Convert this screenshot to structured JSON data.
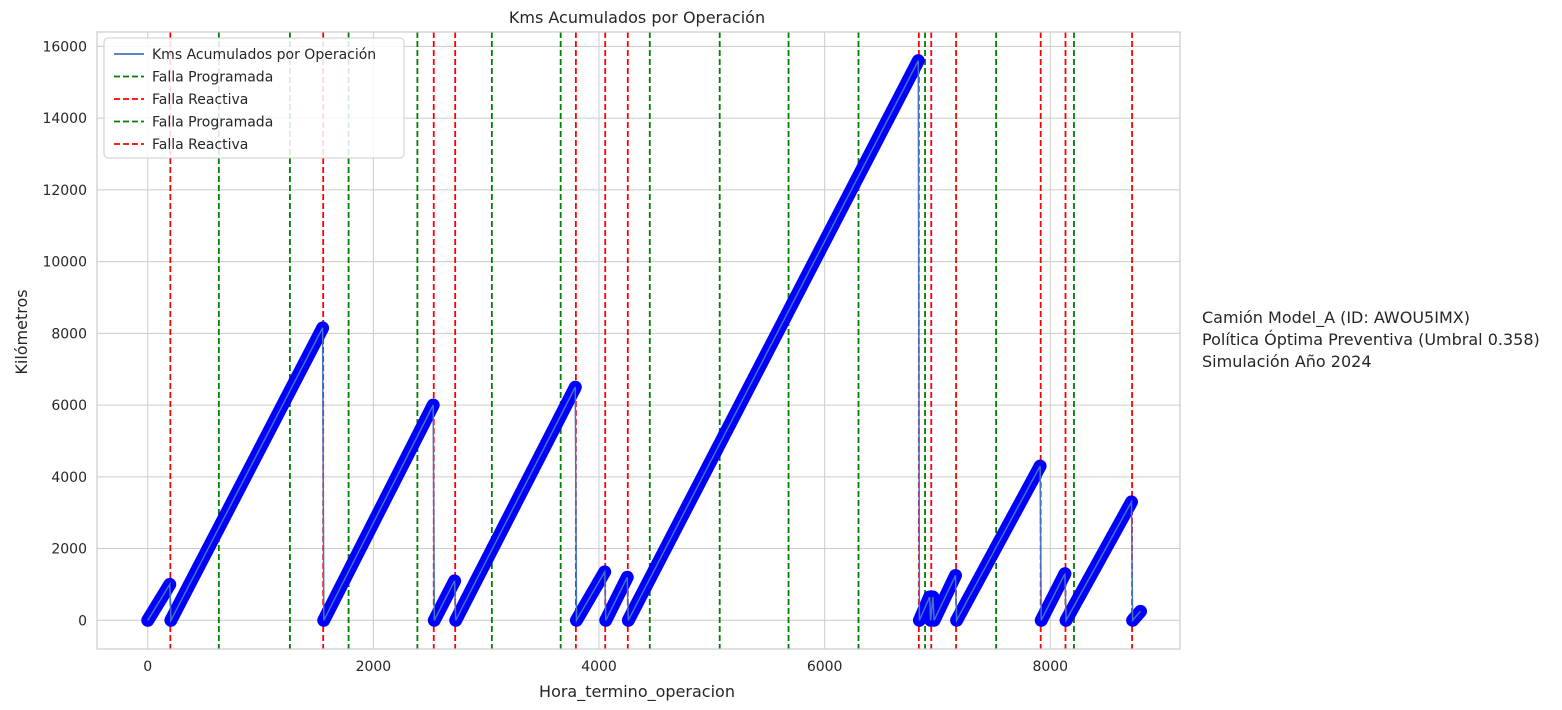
{
  "chart_data": {
    "type": "line",
    "title": "Kms Acumulados por Operación",
    "xlabel": "Hora_termino_operacion",
    "ylabel": "Kilómetros",
    "xlim": [
      -450,
      9150
    ],
    "ylim": [
      -800,
      16400
    ],
    "xticks": [
      0,
      2000,
      4000,
      6000,
      8000
    ],
    "yticks": [
      0,
      2000,
      4000,
      6000,
      8000,
      10000,
      12000,
      14000,
      16000
    ],
    "grid": true,
    "legend_position": "top-left",
    "legend": [
      {
        "label": "Kms Acumulados por Operación",
        "style": "solid",
        "color": "#4472c4"
      },
      {
        "label": "Falla Programada",
        "style": "dashed",
        "color": "#008000"
      },
      {
        "label": "Falla Reactiva",
        "style": "dashed",
        "color": "#ff0000"
      },
      {
        "label": "Falla Programada",
        "style": "dashed",
        "color": "#008000"
      },
      {
        "label": "Falla Reactiva",
        "style": "dashed",
        "color": "#ff0000"
      }
    ],
    "series": [
      {
        "name": "Kms Acumulados por Operación",
        "color": "#0000ff",
        "line_color": "#4472c4",
        "segments": [
          {
            "x": [
              0,
              195
            ],
            "y": [
              0,
              1000
            ]
          },
          {
            "x": [
              205,
              1550
            ],
            "y": [
              0,
              8150
            ]
          },
          {
            "x": [
              1560,
              2530
            ],
            "y": [
              0,
              6000
            ]
          },
          {
            "x": [
              2540,
              2720
            ],
            "y": [
              0,
              1100
            ]
          },
          {
            "x": [
              2730,
              3790
            ],
            "y": [
              0,
              6500
            ]
          },
          {
            "x": [
              3800,
              4050
            ],
            "y": [
              0,
              1350
            ]
          },
          {
            "x": [
              4060,
              4250
            ],
            "y": [
              0,
              1200
            ]
          },
          {
            "x": [
              4260,
              6830
            ],
            "y": [
              0,
              15600
            ]
          },
          {
            "x": [
              6840,
              6930
            ],
            "y": [
              0,
              650
            ]
          },
          {
            "x": [
              6940,
              6960
            ],
            "y": [
              0,
              650
            ]
          },
          {
            "x": [
              6970,
              7160
            ],
            "y": [
              0,
              1250
            ]
          },
          {
            "x": [
              7170,
              7910
            ],
            "y": [
              0,
              4300
            ]
          },
          {
            "x": [
              7920,
              8130
            ],
            "y": [
              0,
              1300
            ]
          },
          {
            "x": [
              8140,
              8720
            ],
            "y": [
              0,
              3300
            ]
          },
          {
            "x": [
              8730,
              8800
            ],
            "y": [
              0,
              250
            ]
          }
        ]
      }
    ],
    "events": {
      "falla_programada": [
        630,
        1260,
        1780,
        2390,
        3050,
        3660,
        4450,
        5070,
        5680,
        6300,
        6890,
        7520,
        8210
      ],
      "falla_reactiva": [
        200,
        1555,
        2535,
        2725,
        3795,
        4055,
        4255,
        6835,
        6945,
        7165,
        7915,
        8135,
        8725
      ]
    },
    "colors": {
      "falla_programada": "#008000",
      "falla_reactiva": "#ff0000",
      "markers": "#0000ff",
      "grid": "#cccccc",
      "spine": "#cccccc"
    }
  },
  "annotation": {
    "line1": "Camión Model_A (ID: AWOU5IMX)",
    "line2": "Política Óptima Preventiva (Umbral 0.358)",
    "line3": "Simulación Año 2024"
  }
}
